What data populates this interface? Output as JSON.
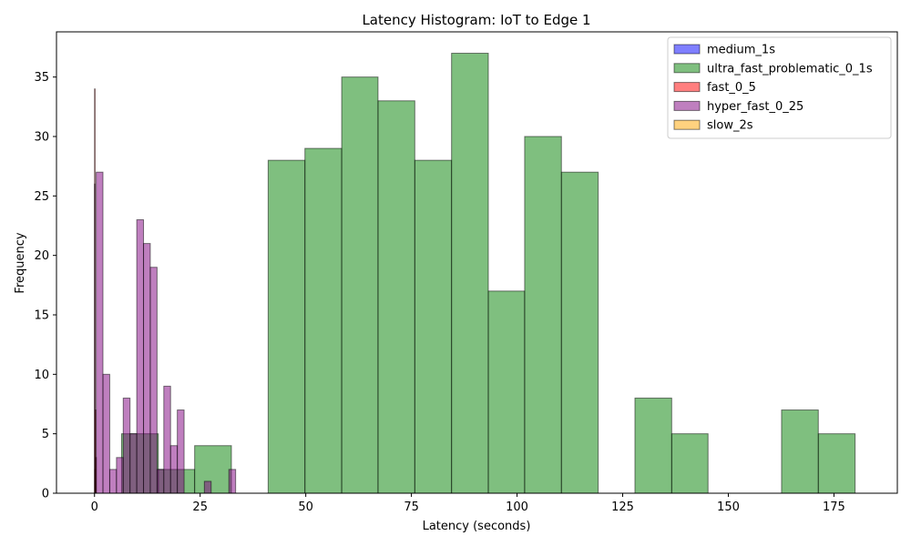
{
  "chart_data": {
    "type": "bar",
    "title": "Latency Histogram: IoT to Edge 1",
    "xlabel": "Latency (seconds)",
    "ylabel": "Frequency",
    "xlim": [
      -9,
      190
    ],
    "ylim": [
      0,
      38.8
    ],
    "x_ticks": [
      0,
      25,
      50,
      75,
      100,
      125,
      150,
      175
    ],
    "y_ticks": [
      0,
      5,
      10,
      15,
      20,
      25,
      30,
      35
    ],
    "grid": false,
    "legend_position": "top-right",
    "series": [
      {
        "name": "medium_1s",
        "color": "#0000ff",
        "bins": [
          {
            "x0": 0.0,
            "x1": 0.06,
            "count": 26
          },
          {
            "x0": 0.06,
            "x1": 0.12,
            "count": 2
          },
          {
            "x0": 0.12,
            "x1": 0.18,
            "count": 1
          }
        ]
      },
      {
        "name": "ultra_fast_problematic_0_1s",
        "color": "#008000",
        "bins": [
          {
            "x0": 6.4,
            "x1": 15.1,
            "count": 5
          },
          {
            "x0": 15.1,
            "x1": 23.7,
            "count": 2
          },
          {
            "x0": 23.7,
            "x1": 32.4,
            "count": 4
          },
          {
            "x0": 32.4,
            "x1": 41.1,
            "count": 0
          },
          {
            "x0": 41.1,
            "x1": 49.8,
            "count": 28
          },
          {
            "x0": 49.8,
            "x1": 58.5,
            "count": 29
          },
          {
            "x0": 58.5,
            "x1": 67.1,
            "count": 35
          },
          {
            "x0": 67.1,
            "x1": 75.8,
            "count": 33
          },
          {
            "x0": 75.8,
            "x1": 84.5,
            "count": 28
          },
          {
            "x0": 84.5,
            "x1": 93.2,
            "count": 37
          },
          {
            "x0": 93.2,
            "x1": 101.8,
            "count": 17
          },
          {
            "x0": 101.8,
            "x1": 110.5,
            "count": 30
          },
          {
            "x0": 110.5,
            "x1": 119.2,
            "count": 27
          },
          {
            "x0": 119.2,
            "x1": 127.9,
            "count": 0
          },
          {
            "x0": 127.9,
            "x1": 136.6,
            "count": 8
          },
          {
            "x0": 136.6,
            "x1": 145.2,
            "count": 5
          },
          {
            "x0": 145.2,
            "x1": 153.9,
            "count": 0
          },
          {
            "x0": 153.9,
            "x1": 162.6,
            "count": 0
          },
          {
            "x0": 162.6,
            "x1": 171.3,
            "count": 7
          },
          {
            "x0": 171.3,
            "x1": 180.0,
            "count": 5
          }
        ]
      },
      {
        "name": "fast_0_5",
        "color": "#ff0000",
        "bins": [
          {
            "x0": 0.0,
            "x1": 0.15,
            "count": 34
          },
          {
            "x0": 0.15,
            "x1": 0.3,
            "count": 7
          },
          {
            "x0": 0.3,
            "x1": 0.45,
            "count": 3
          }
        ]
      },
      {
        "name": "hyper_fast_0_25",
        "color": "#800080",
        "bins": [
          {
            "x0": 0.4,
            "x1": 2.0,
            "count": 27
          },
          {
            "x0": 2.0,
            "x1": 3.6,
            "count": 10
          },
          {
            "x0": 3.6,
            "x1": 5.2,
            "count": 2
          },
          {
            "x0": 5.2,
            "x1": 6.8,
            "count": 3
          },
          {
            "x0": 6.8,
            "x1": 8.4,
            "count": 8
          },
          {
            "x0": 8.4,
            "x1": 10.0,
            "count": 5
          },
          {
            "x0": 10.0,
            "x1": 11.6,
            "count": 23
          },
          {
            "x0": 11.6,
            "x1": 13.2,
            "count": 21
          },
          {
            "x0": 13.2,
            "x1": 14.8,
            "count": 19
          },
          {
            "x0": 14.8,
            "x1": 16.4,
            "count": 2
          },
          {
            "x0": 16.4,
            "x1": 18.0,
            "count": 9
          },
          {
            "x0": 18.0,
            "x1": 19.6,
            "count": 4
          },
          {
            "x0": 19.6,
            "x1": 21.2,
            "count": 7
          },
          {
            "x0": 21.2,
            "x1": 22.8,
            "count": 0
          },
          {
            "x0": 22.8,
            "x1": 24.4,
            "count": 0
          },
          {
            "x0": 24.4,
            "x1": 26.0,
            "count": 0
          },
          {
            "x0": 26.0,
            "x1": 27.6,
            "count": 1
          },
          {
            "x0": 27.6,
            "x1": 29.2,
            "count": 0
          },
          {
            "x0": 29.2,
            "x1": 30.8,
            "count": 0
          },
          {
            "x0": 31.8,
            "x1": 33.4,
            "count": 2
          }
        ]
      },
      {
        "name": "slow_2s",
        "color": "#ffa500",
        "bins": []
      }
    ]
  }
}
